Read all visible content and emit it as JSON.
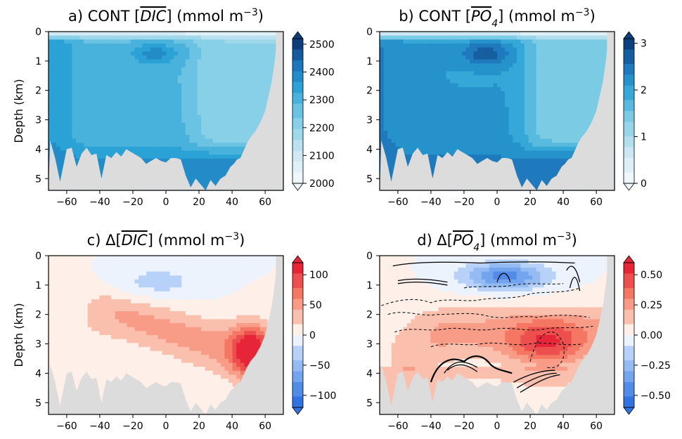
{
  "chart_data": [
    {
      "id": "a",
      "type": "heatmap",
      "title": "a) CONT [DIC] (mmol m⁻³)",
      "title_parts": {
        "prefix": "a) CONT [",
        "var": "DIC",
        "suffix": "] (mmol m",
        "exp": "−3",
        "close": ")"
      },
      "ylabel": "Depth (km)",
      "xticks": [
        "−60",
        "−40",
        "−20",
        "0",
        "20",
        "40",
        "60"
      ],
      "yticks": [
        "0",
        "1",
        "2",
        "3",
        "4",
        "5"
      ],
      "xlim": [
        -71,
        71
      ],
      "ylim": [
        0,
        5.4
      ],
      "colorbar": {
        "colormap": "blues",
        "range": [
          2000,
          2520
        ],
        "ticks": [
          "2000",
          "2100",
          "2200",
          "2300",
          "2400",
          "2500"
        ],
        "tick_values": [
          2000,
          2100,
          2200,
          2300,
          2400,
          2500
        ]
      },
      "fields": {
        "surface_value": 2050,
        "upper_value": 2270,
        "deep_value": 2290,
        "northern_upper_value": 2210,
        "core_value": 2380,
        "bottom_value": 2400
      }
    },
    {
      "id": "b",
      "type": "heatmap",
      "title": "b) CONT [PO4] (mmol m⁻³)",
      "title_parts": {
        "prefix": "b) CONT [",
        "var": "PO",
        "sub": "4",
        "suffix": "] (mmol m",
        "exp": "−3",
        "close": ")"
      },
      "xticks": [
        "−60",
        "−40",
        "−20",
        "0",
        "20",
        "40",
        "60"
      ],
      "yticks": [
        "0",
        "1",
        "2",
        "3",
        "4",
        "5"
      ],
      "xlim": [
        -71,
        71
      ],
      "ylim": [
        0,
        5.4
      ],
      "colorbar": {
        "colormap": "blues",
        "range": [
          0,
          3.1
        ],
        "ticks": [
          "0",
          "1",
          "2",
          "3"
        ],
        "tick_values": [
          0,
          1,
          2,
          3
        ]
      },
      "fields": {
        "surface_value": 0.3,
        "upper_value": 2.0,
        "deep_value": 2.1,
        "northern_upper_value": 1.4,
        "core_value": 2.8,
        "bottom_value": 2.5
      }
    },
    {
      "id": "c",
      "type": "heatmap",
      "title": "c) Δ[DIC] (mmol m⁻³)",
      "title_parts": {
        "prefix": "c) Δ[",
        "var": "DIC",
        "suffix": "] (mmol m",
        "exp": "−3",
        "close": ")"
      },
      "ylabel": "Depth (km)",
      "xticks": [
        "−60",
        "−40",
        "−20",
        "0",
        "20",
        "40",
        "60"
      ],
      "yticks": [
        "0",
        "1",
        "2",
        "3",
        "4",
        "5"
      ],
      "xlim": [
        -71,
        71
      ],
      "ylim": [
        0,
        5.4
      ],
      "colorbar": {
        "colormap": "diverging",
        "range": [
          -120,
          120
        ],
        "ticks": [
          "−100",
          "−50",
          "0",
          "50",
          "100"
        ],
        "tick_values": [
          -100,
          -50,
          0,
          50,
          100
        ]
      },
      "fields": {
        "anomaly_max": 125,
        "anomaly_max_location": [
          52,
          3.2
        ],
        "anomaly_min": -30,
        "anomaly_min_location": [
          -5,
          0.9
        ]
      }
    },
    {
      "id": "d",
      "type": "heatmap",
      "title": "d) Δ[PO4] (mmol m⁻³)",
      "title_parts": {
        "prefix": "d) Δ[",
        "var": "PO",
        "sub": "4",
        "suffix": "] (mmol m",
        "exp": "−3",
        "close": ")"
      },
      "xticks": [
        "−60",
        "−40",
        "−20",
        "0",
        "20",
        "40",
        "60"
      ],
      "yticks": [
        "0",
        "1",
        "2",
        "3",
        "4",
        "5"
      ],
      "xlim": [
        -71,
        71
      ],
      "ylim": [
        0,
        5.4
      ],
      "colorbar": {
        "colormap": "diverging",
        "range": [
          -0.6,
          0.6
        ],
        "ticks": [
          "−0.50",
          "−0.25",
          "0.00",
          "0.25",
          "0.50"
        ],
        "tick_values": [
          -0.5,
          -0.25,
          0,
          0.25,
          0.5
        ]
      },
      "fields": {
        "anomaly_max": 0.55,
        "anomaly_max_location": [
          30,
          3.0
        ],
        "anomaly_min": -0.45,
        "anomaly_min_location": [
          5,
          0.7
        ]
      },
      "overlay_contours": true
    }
  ]
}
